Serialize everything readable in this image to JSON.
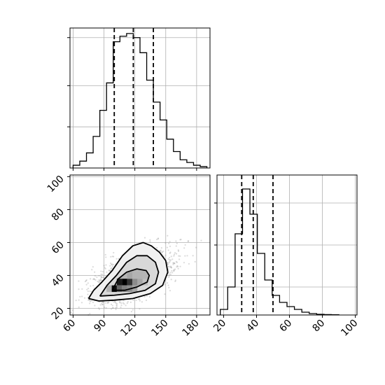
{
  "chart_data": [
    {
      "type": "histogram",
      "panel": "top-left marginal of x",
      "xlim": [
        57,
        193
      ],
      "grid": true,
      "bin_edges": [
        60,
        66.5,
        73,
        79.5,
        86,
        92.5,
        99,
        105.5,
        112,
        118.5,
        125,
        131.5,
        138,
        144.5,
        151,
        157.5,
        164,
        170.5,
        177,
        183.5,
        190
      ],
      "counts": [
        0.02,
        0.05,
        0.11,
        0.23,
        0.42,
        0.62,
        0.92,
        0.96,
        0.98,
        0.95,
        0.84,
        0.64,
        0.48,
        0.35,
        0.21,
        0.12,
        0.06,
        0.04,
        0.02,
        0.01
      ],
      "quantile_lines": [
        100,
        118.5,
        138
      ],
      "yticks_shown": true,
      "ytick_labels_shown": false
    },
    {
      "type": "scatter-contour",
      "panel": "bottom-left joint",
      "xlim": [
        57,
        193
      ],
      "ylim": [
        16,
        101
      ],
      "xticks": [
        60,
        90,
        120,
        150,
        180
      ],
      "yticks": [
        20,
        40,
        60,
        80,
        100
      ],
      "xtick_labels": [
        "60",
        "90",
        "120",
        "150",
        "180"
      ],
      "ytick_labels": [
        "20",
        "40",
        "60",
        "80",
        "100"
      ],
      "grid": true,
      "contours": [
        [
          [
            75,
            26
          ],
          [
            85,
            24.5
          ],
          [
            100,
            25
          ],
          [
            118,
            26
          ],
          [
            135,
            29
          ],
          [
            147,
            34
          ],
          [
            152,
            42
          ],
          [
            150,
            49
          ],
          [
            144,
            54
          ],
          [
            136,
            58
          ],
          [
            128,
            60
          ],
          [
            118,
            58
          ],
          [
            108,
            52
          ],
          [
            98,
            43
          ],
          [
            88,
            36
          ],
          [
            80,
            31
          ],
          [
            75,
            26
          ]
        ],
        [
          [
            86,
            27.5
          ],
          [
            100,
            28
          ],
          [
            115,
            29
          ],
          [
            130,
            31
          ],
          [
            140,
            35
          ],
          [
            143,
            42
          ],
          [
            140,
            48
          ],
          [
            132,
            52
          ],
          [
            122,
            52
          ],
          [
            112,
            48
          ],
          [
            102,
            40
          ],
          [
            93,
            34
          ],
          [
            86,
            27.5
          ]
        ],
        [
          [
            98,
            31
          ],
          [
            110,
            31
          ],
          [
            122,
            33
          ],
          [
            132,
            36
          ],
          [
            134,
            40
          ],
          [
            131,
            43
          ],
          [
            122,
            44
          ],
          [
            112,
            42
          ],
          [
            104,
            38
          ],
          [
            98,
            31
          ]
        ]
      ],
      "density_cells": [
        {
          "x": 105,
          "y": 36,
          "level": 0.9
        },
        {
          "x": 110,
          "y": 36,
          "level": 1.0
        },
        {
          "x": 115,
          "y": 36,
          "level": 0.8
        },
        {
          "x": 100,
          "y": 32,
          "level": 0.95
        },
        {
          "x": 105,
          "y": 32,
          "level": 0.6
        },
        {
          "x": 110,
          "y": 32,
          "level": 0.5
        },
        {
          "x": 115,
          "y": 32,
          "level": 0.45
        },
        {
          "x": 120,
          "y": 32,
          "level": 0.35
        },
        {
          "x": 120,
          "y": 36,
          "level": 0.45
        },
        {
          "x": 125,
          "y": 36,
          "level": 0.35
        },
        {
          "x": 115,
          "y": 40,
          "level": 0.35
        },
        {
          "x": 120,
          "y": 40,
          "level": 0.3
        },
        {
          "x": 125,
          "y": 40,
          "level": 0.3
        },
        {
          "x": 95,
          "y": 32,
          "level": 0.3
        },
        {
          "x": 130,
          "y": 36,
          "level": 0.25
        }
      ]
    },
    {
      "type": "histogram",
      "panel": "bottom-right marginal of y",
      "xlim": [
        16,
        101
      ],
      "xticks": [
        20,
        40,
        60,
        80,
        100
      ],
      "xtick_labels": [
        "20",
        "40",
        "60",
        "80",
        "100"
      ],
      "grid": true,
      "bin_edges": [
        18,
        22.5,
        27,
        31.5,
        36,
        40.5,
        45,
        49.5,
        54,
        58.5,
        63,
        67.5,
        72,
        76.5,
        81,
        85.5,
        90
      ],
      "counts": [
        0.04,
        0.2,
        0.58,
        0.9,
        0.72,
        0.44,
        0.25,
        0.14,
        0.09,
        0.06,
        0.04,
        0.02,
        0.01,
        0.005,
        0.003,
        0.002
      ],
      "quantile_lines": [
        31,
        38,
        50
      ],
      "yticks_shown": true,
      "ytick_labels_shown": false
    }
  ]
}
